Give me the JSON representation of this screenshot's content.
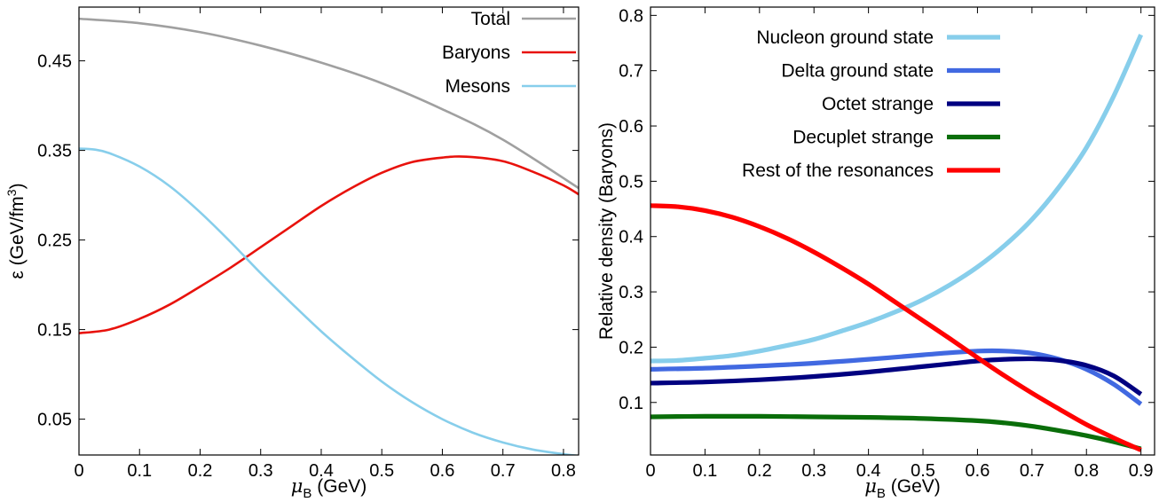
{
  "chart_data": [
    {
      "type": "line",
      "xlabel": "μ",
      "xlabel_sub": "B",
      "xlabel_unit": " (GeV)",
      "ylabel": "ε (GeV/fm",
      "ylabel_sup": "3",
      "ylabel_end": ")",
      "xlim": [
        0,
        0.825
      ],
      "ylim": [
        0.01,
        0.51
      ],
      "xticks": [
        "0",
        "0.1",
        "0.2",
        "0.3",
        "0.4",
        "0.5",
        "0.6",
        "0.7",
        "0.8"
      ],
      "yticks": [
        "0.05",
        "0.15",
        "0.25",
        "0.35",
        "0.45"
      ],
      "legend_position": "top-right",
      "grid": false,
      "series": [
        {
          "name": "Total",
          "color": "#a0a0a0",
          "x": [
            0,
            0.1,
            0.2,
            0.3,
            0.4,
            0.5,
            0.6,
            0.7,
            0.825
          ],
          "y": [
            0.497,
            0.492,
            0.482,
            0.467,
            0.448,
            0.425,
            0.396,
            0.362,
            0.308
          ]
        },
        {
          "name": "Baryons",
          "color": "#e8120c",
          "x": [
            0,
            0.05,
            0.1,
            0.15,
            0.2,
            0.25,
            0.3,
            0.35,
            0.4,
            0.45,
            0.5,
            0.55,
            0.6,
            0.64,
            0.7,
            0.75,
            0.8,
            0.825
          ],
          "y": [
            0.146,
            0.15,
            0.162,
            0.178,
            0.198,
            0.219,
            0.242,
            0.265,
            0.288,
            0.308,
            0.325,
            0.337,
            0.342,
            0.343,
            0.338,
            0.326,
            0.311,
            0.301
          ]
        },
        {
          "name": "Mesons",
          "color": "#87ceeb",
          "x": [
            0,
            0.025,
            0.05,
            0.1,
            0.15,
            0.2,
            0.25,
            0.3,
            0.35,
            0.4,
            0.45,
            0.5,
            0.55,
            0.6,
            0.65,
            0.7,
            0.75,
            0.8,
            0.825
          ],
          "y": [
            0.352,
            0.351,
            0.347,
            0.332,
            0.31,
            0.281,
            0.248,
            0.213,
            0.18,
            0.148,
            0.119,
            0.092,
            0.069,
            0.05,
            0.035,
            0.024,
            0.016,
            0.011,
            0.009
          ]
        }
      ]
    },
    {
      "type": "line",
      "xlabel": "μ",
      "xlabel_sub": "B",
      "xlabel_unit": " (GeV)",
      "ylabel": "Relative density (Baryons)",
      "xlim": [
        0,
        0.925
      ],
      "ylim": [
        0.005,
        0.815
      ],
      "xticks": [
        "0",
        "0.1",
        "0.2",
        "0.3",
        "0.4",
        "0.5",
        "0.6",
        "0.7",
        "0.8",
        "0.9"
      ],
      "yticks": [
        "0.1",
        "0.2",
        "0.3",
        "0.4",
        "0.5",
        "0.6",
        "0.7",
        "0.8"
      ],
      "legend_position": "top-left",
      "grid": false,
      "series": [
        {
          "name": "Nucleon ground state",
          "color": "#87ceeb",
          "x": [
            0,
            0.05,
            0.1,
            0.15,
            0.2,
            0.25,
            0.3,
            0.35,
            0.4,
            0.45,
            0.5,
            0.55,
            0.6,
            0.65,
            0.7,
            0.75,
            0.8,
            0.85,
            0.9
          ],
          "y": [
            0.175,
            0.176,
            0.18,
            0.185,
            0.193,
            0.203,
            0.214,
            0.229,
            0.245,
            0.264,
            0.286,
            0.313,
            0.345,
            0.384,
            0.431,
            0.49,
            0.561,
            0.654,
            0.765
          ]
        },
        {
          "name": "Delta ground state",
          "color": "#4169e1",
          "x": [
            0,
            0.1,
            0.2,
            0.3,
            0.4,
            0.5,
            0.55,
            0.6,
            0.65,
            0.7,
            0.75,
            0.8,
            0.85,
            0.9
          ],
          "y": [
            0.16,
            0.162,
            0.166,
            0.171,
            0.178,
            0.186,
            0.19,
            0.193,
            0.193,
            0.189,
            0.178,
            0.16,
            0.133,
            0.097
          ]
        },
        {
          "name": "Octet strange",
          "color": "#000080",
          "x": [
            0,
            0.1,
            0.2,
            0.3,
            0.4,
            0.5,
            0.55,
            0.6,
            0.65,
            0.7,
            0.75,
            0.8,
            0.85,
            0.9
          ],
          "y": [
            0.135,
            0.137,
            0.141,
            0.147,
            0.155,
            0.165,
            0.17,
            0.175,
            0.178,
            0.179,
            0.176,
            0.167,
            0.148,
            0.115
          ]
        },
        {
          "name": "Decuplet strange",
          "color": "#0a6e0a",
          "x": [
            0,
            0.1,
            0.2,
            0.3,
            0.4,
            0.5,
            0.6,
            0.65,
            0.7,
            0.75,
            0.8,
            0.85,
            0.9
          ],
          "y": [
            0.074,
            0.075,
            0.075,
            0.074,
            0.073,
            0.071,
            0.067,
            0.063,
            0.057,
            0.049,
            0.04,
            0.029,
            0.016
          ]
        },
        {
          "name": "Rest of the resonances",
          "color": "#ff0000",
          "x": [
            0,
            0.05,
            0.1,
            0.15,
            0.2,
            0.25,
            0.3,
            0.35,
            0.4,
            0.45,
            0.5,
            0.55,
            0.6,
            0.65,
            0.7,
            0.75,
            0.8,
            0.85,
            0.9
          ],
          "y": [
            0.456,
            0.454,
            0.447,
            0.435,
            0.418,
            0.397,
            0.372,
            0.344,
            0.314,
            0.281,
            0.248,
            0.215,
            0.181,
            0.148,
            0.117,
            0.088,
            0.06,
            0.036,
            0.014
          ]
        }
      ]
    }
  ]
}
